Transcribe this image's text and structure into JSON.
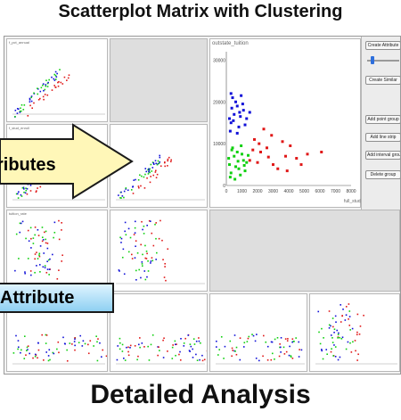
{
  "title": "Scatterplot Matrix with Clustering",
  "footer": "Detailed Analysis",
  "callouts": {
    "arrow_label": "ributes",
    "attribute_label": "Attribute"
  },
  "colors": {
    "cluster_blue": "#1010d8",
    "cluster_red": "#e01818",
    "cluster_green": "#10d010",
    "arrow_fill": "#fff7b8",
    "attr_box": "#a9dcf6"
  },
  "matrix": {
    "row_labels": [
      "f_pct_annual",
      "f_stud_enroll",
      "tuition_rate",
      "book_cost"
    ]
  },
  "panel": {
    "create_attribute": "Create Attribute",
    "create_similar": "Create Similar",
    "add_point_group": "Add point group",
    "add_line_strip": "Add line strip",
    "add_interval_group": "Add interval group",
    "delete_group": "Delete group"
  },
  "detail_chart": {
    "y_label": "outstate_tuition",
    "x_label": "full_stud_enr",
    "x_ticks": [
      "0",
      "1000",
      "2000",
      "3000",
      "4000",
      "5000",
      "6000",
      "7000",
      "8000"
    ],
    "y_ticks": [
      "30000",
      "20000",
      "10000",
      "0"
    ]
  },
  "chart_data": {
    "type": "scatter",
    "xlabel": "full_stud_enr",
    "ylabel": "outstate_tuition",
    "xlim": [
      0,
      8000
    ],
    "ylim": [
      0,
      32000
    ],
    "series": [
      {
        "color": "#1010d8",
        "points": [
          [
            300,
            15000
          ],
          [
            500,
            17000
          ],
          [
            700,
            19000
          ],
          [
            900,
            16500
          ],
          [
            400,
            21000
          ],
          [
            1100,
            18000
          ],
          [
            250,
            13000
          ],
          [
            800,
            14000
          ],
          [
            1300,
            16000
          ],
          [
            600,
            20000
          ],
          [
            350,
            18500
          ],
          [
            1500,
            17500
          ],
          [
            950,
            21500
          ],
          [
            200,
            16000
          ],
          [
            700,
            12500
          ],
          [
            1200,
            14500
          ],
          [
            450,
            15500
          ],
          [
            1050,
            19500
          ],
          [
            300,
            22000
          ],
          [
            850,
            17500
          ]
        ]
      },
      {
        "color": "#e01818",
        "points": [
          [
            1500,
            6000
          ],
          [
            2200,
            8000
          ],
          [
            3000,
            5000
          ],
          [
            2600,
            9000
          ],
          [
            3800,
            7000
          ],
          [
            4500,
            6500
          ],
          [
            1800,
            11000
          ],
          [
            2900,
            12000
          ],
          [
            3300,
            4000
          ],
          [
            5200,
            7500
          ],
          [
            2000,
            5500
          ],
          [
            4100,
            9500
          ],
          [
            1700,
            8500
          ],
          [
            2400,
            13500
          ],
          [
            3600,
            10500
          ],
          [
            6100,
            8000
          ],
          [
            4800,
            5000
          ],
          [
            2700,
            6800
          ],
          [
            3900,
            3500
          ],
          [
            2100,
            10000
          ]
        ]
      },
      {
        "color": "#10d010",
        "points": [
          [
            200,
            5000
          ],
          [
            500,
            7000
          ],
          [
            800,
            4000
          ],
          [
            1100,
            6000
          ],
          [
            300,
            3000
          ],
          [
            700,
            8000
          ],
          [
            1300,
            5500
          ],
          [
            400,
            9000
          ],
          [
            900,
            2500
          ],
          [
            1000,
            7500
          ],
          [
            150,
            6500
          ],
          [
            600,
            4500
          ],
          [
            1200,
            3500
          ],
          [
            350,
            8500
          ],
          [
            750,
            5800
          ],
          [
            1400,
            7200
          ],
          [
            250,
            2000
          ],
          [
            950,
            9500
          ],
          [
            550,
            1500
          ],
          [
            1150,
            4800
          ]
        ]
      }
    ]
  }
}
